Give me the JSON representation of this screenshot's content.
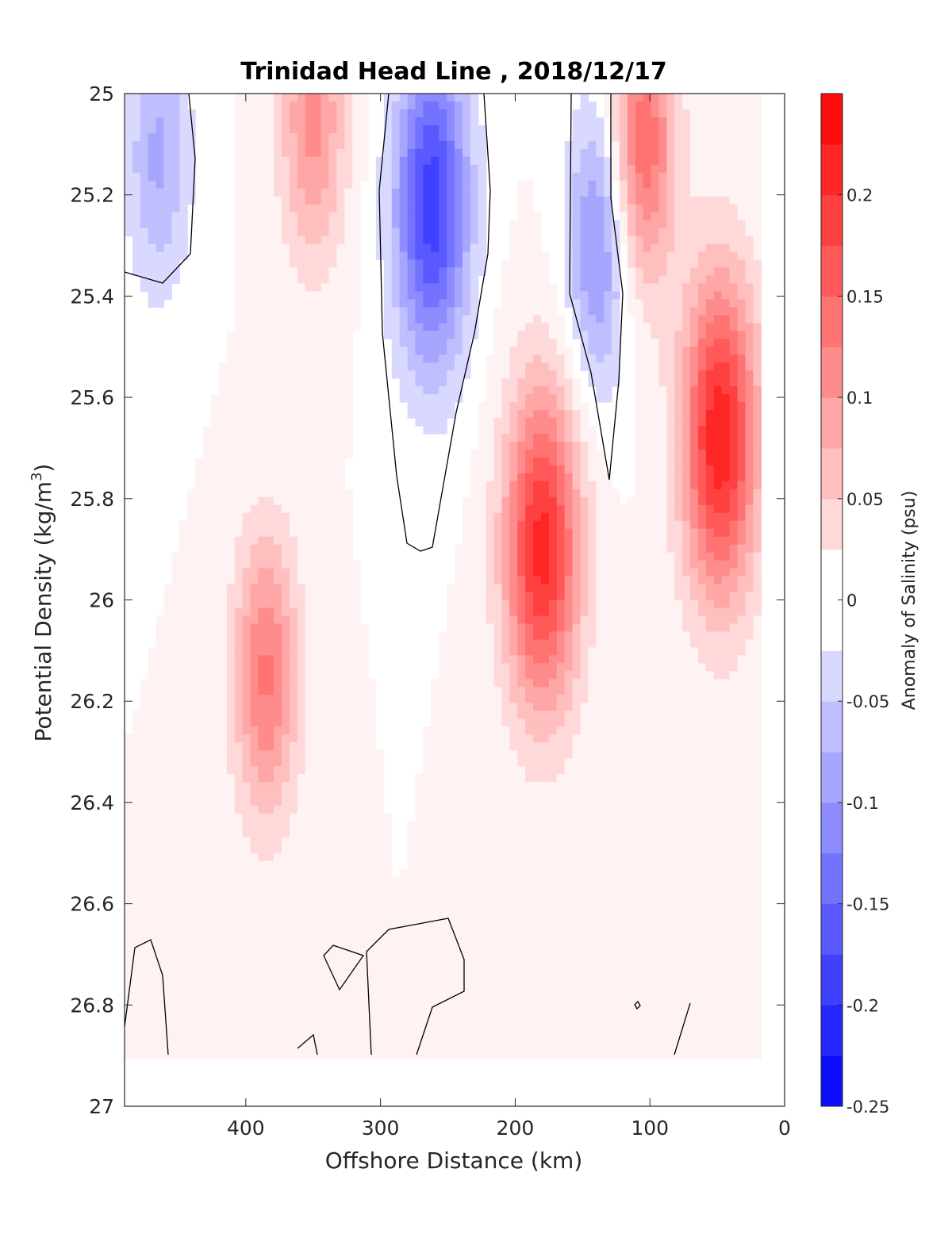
{
  "chart_data": {
    "type": "heatmap",
    "subtype": "filled-contour",
    "title": "Trinidad Head Line , 2018/12/17",
    "xlabel": "Offshore Distance (km)",
    "ylabel_main": "Potential Density (kg/m",
    "ylabel_sup": "3",
    "ylabel_close": ")",
    "colorbar_label": "Anomaly of Salinity (psu)",
    "xlim": [
      490,
      0
    ],
    "x_reversed": true,
    "ylim": [
      25,
      27
    ],
    "y_reversed": true,
    "xticks": [
      400,
      300,
      200,
      100,
      0
    ],
    "yticks": [
      "25",
      "25.2",
      "25.4",
      "25.6",
      "25.8",
      "26",
      "26.2",
      "26.4",
      "26.6",
      "26.8",
      "27"
    ],
    "yticks_values": [
      25,
      25.2,
      25.4,
      25.6,
      25.8,
      26,
      26.2,
      26.4,
      26.6,
      26.8,
      27
    ],
    "clim": [
      -0.25,
      0.25
    ],
    "colorbar_levels": [
      -0.25,
      -0.225,
      -0.2,
      -0.175,
      -0.15,
      -0.125,
      -0.1,
      -0.075,
      -0.05,
      -0.025,
      0,
      0.025,
      0.05,
      0.075,
      0.1,
      0.125,
      0.15,
      0.175,
      0.2,
      0.225,
      0.25
    ],
    "colorbar_ticks": [
      "-0.25",
      "-0.2",
      "-0.15",
      "-0.1",
      "-0.05",
      "0",
      "0.05",
      "0.1",
      "0.15",
      "0.2"
    ],
    "colorbar_ticks_values": [
      -0.25,
      -0.2,
      -0.15,
      -0.1,
      -0.05,
      0,
      0.05,
      0.1,
      0.15,
      0.2
    ],
    "colors": {
      "negative_max": "#0000ff",
      "zero": "#ffffff",
      "positive_max": "#ff0000",
      "zero_contour": "#000000"
    },
    "data_columns_x_km": [
      470,
      415,
      365,
      320,
      262,
      228,
      178,
      138,
      115,
      70,
      45,
      22
    ],
    "anomaly_cores": [
      {
        "x_km": 465,
        "density": 25.12,
        "anomaly": -0.08
      },
      {
        "x_km": 262,
        "density": 25.22,
        "anomaly": -0.19
      },
      {
        "x_km": 138,
        "density": 25.3,
        "anomaly": -0.11
      },
      {
        "x_km": 180,
        "density": 25.9,
        "anomaly": 0.21
      },
      {
        "x_km": 48,
        "density": 25.68,
        "anomaly": 0.22
      },
      {
        "x_km": 385,
        "density": 26.15,
        "anomaly": 0.13
      },
      {
        "x_km": 350,
        "density": 25.05,
        "anomaly": 0.11
      },
      {
        "x_km": 105,
        "density": 25.1,
        "anomaly": 0.15
      }
    ],
    "data_mask_bottom_density": 26.9
  }
}
